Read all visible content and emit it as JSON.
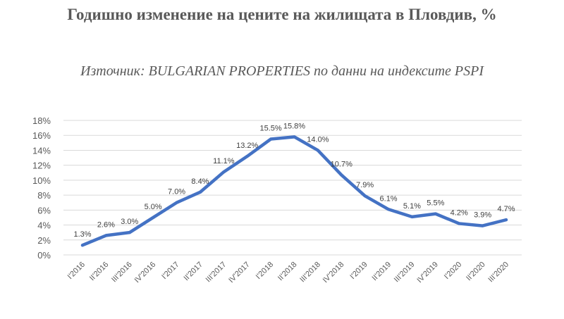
{
  "chart_data": {
    "type": "line",
    "title": "Годишно изменение на цените на жилищата в Пловдив, %",
    "subtitle": "Източник: BULGARIAN PROPERTIES по данни на индексите PSPI",
    "categories": [
      "I'2016",
      "II'2016",
      "III'2016",
      "IV'2016",
      "I'2017",
      "II'2017",
      "III'2017",
      "IV'2017",
      "I'2018",
      "II'2018",
      "III'2018",
      "IV'2018",
      "I'2019",
      "II'2019",
      "III'2019",
      "IV'2019",
      "I'2020",
      "II'2020",
      "III'2020"
    ],
    "series": [
      {
        "values": [
          1.3,
          2.6,
          3.0,
          5.0,
          7.0,
          8.4,
          11.1,
          13.2,
          15.5,
          15.8,
          14.0,
          10.7,
          7.9,
          6.1,
          5.1,
          5.5,
          4.2,
          3.9,
          4.7
        ],
        "labels": [
          "1.3%",
          "2.6%",
          "3.0%",
          "5.0%",
          "7.0%",
          "8.4%",
          "11.1%",
          "13.2%",
          "15.5%",
          "15.8%",
          "14.0%",
          "10.7%",
          "7.9%",
          "6.1%",
          "5.1%",
          "5.5%",
          "4.2%",
          "3.9%",
          "4.7%"
        ],
        "color": "#4472c4"
      }
    ],
    "yticks": [
      "0%",
      "2%",
      "4%",
      "6%",
      "8%",
      "10%",
      "12%",
      "14%",
      "16%",
      "18%"
    ],
    "ylim": [
      0,
      18
    ],
    "grid": true,
    "legend": "none"
  }
}
